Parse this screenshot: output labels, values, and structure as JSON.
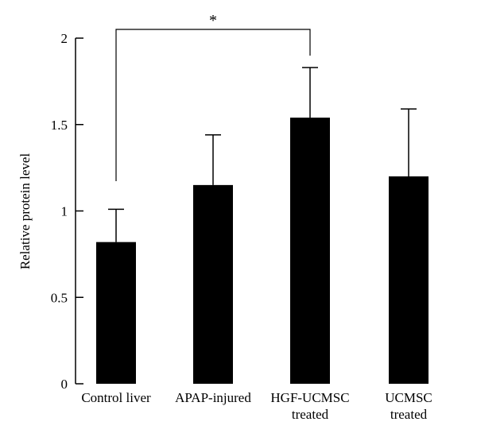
{
  "chart_data": {
    "type": "bar",
    "categories": [
      [
        "Control liver"
      ],
      [
        "APAP-injured"
      ],
      [
        "HGF-UCMSC",
        "treated"
      ],
      [
        "UCMSC",
        "treated"
      ]
    ],
    "values": [
      0.82,
      1.15,
      1.54,
      1.2
    ],
    "error_upper": [
      1.01,
      1.44,
      1.83,
      1.59
    ],
    "ylabel": "Relative protein level",
    "ylim": [
      0,
      2
    ],
    "yticks": [
      0,
      0.5,
      1,
      1.5,
      2
    ],
    "ytick_labels": [
      "0",
      "0.5",
      "1",
      "1.5",
      "2"
    ],
    "bar_color": "#000000",
    "significance": {
      "label": "*",
      "from_category": 0,
      "to_category": 2
    }
  }
}
